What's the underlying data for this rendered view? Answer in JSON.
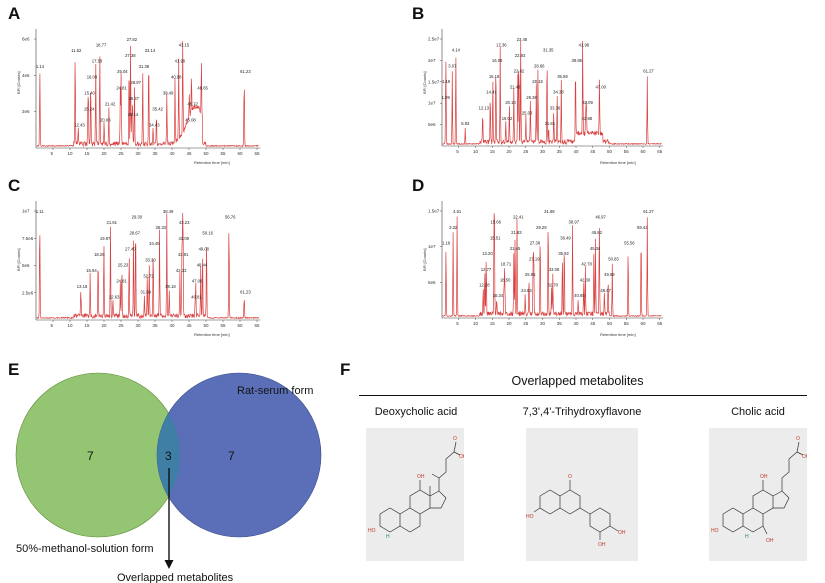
{
  "panels": {
    "A": {
      "letter": "A",
      "ylabel": "BPI [Counts]",
      "xlabel": "Retention time [min]",
      "yticks": [
        "2e6",
        "4e6",
        "6e6"
      ],
      "xticks": [
        "5",
        "10",
        "15",
        "20",
        "25",
        "30",
        "35",
        "40",
        "45",
        "50",
        "55",
        "60",
        "65"
      ],
      "peak_labels": [
        "1.14",
        "11.52",
        "12.43",
        "15.24",
        "15.40",
        "16.09",
        "17.58",
        "18.77",
        "20.03",
        "21.42",
        "24.81",
        "25.04",
        "27.38",
        "27.82",
        "28.14",
        "28.37",
        "28.97",
        "31.38",
        "33.14",
        "34.43",
        "35.42",
        "38.49",
        "40.88",
        "41.96",
        "43.15",
        "45.08",
        "45.72",
        "48.65",
        "61.23"
      ]
    },
    "B": {
      "letter": "B",
      "ylabel": "BPI [Counts]",
      "xlabel": "Retention time [min]",
      "yticks": [
        "5e6",
        "1e7",
        "1.5e7",
        "2e7",
        "2.5e7"
      ],
      "xticks": [
        "5",
        "10",
        "15",
        "20",
        "25",
        "30",
        "35",
        "40",
        "45",
        "50",
        "55",
        "60",
        "65"
      ],
      "peak_labels": [
        "1.09",
        "1.19",
        "3.07",
        "4.14",
        "6.93",
        "12.13",
        "14.41",
        "15.18",
        "16.09",
        "17.36",
        "19.02",
        "20.10",
        "21.45",
        "22.62",
        "22.93",
        "23.48",
        "25.03",
        "26.38",
        "28.15",
        "28.66",
        "31.35",
        "31.81",
        "33.36",
        "34.38",
        "35.59",
        "39.86",
        "41.98",
        "42.88",
        "43.09",
        "47.00",
        "61.27"
      ]
    },
    "C": {
      "letter": "C",
      "ylabel": "BPI [Counts]",
      "xlabel": "Retention time [min]",
      "yticks": [
        "2.5e6",
        "5e6",
        "7.5e6",
        "1e7"
      ],
      "xticks": [
        "5",
        "10",
        "15",
        "20",
        "25",
        "30",
        "35",
        "40",
        "45",
        "50",
        "55",
        "60",
        "65"
      ],
      "peak_labels": [
        "1.11",
        "13.18",
        "15.94",
        "18.26",
        "19.97",
        "21.91",
        "22.63",
        "24.81",
        "25.23",
        "27.40",
        "28.67",
        "29.30",
        "31.89",
        "32.72",
        "33.30",
        "34.45",
        "36.33",
        "38.49",
        "39.18",
        "42.33",
        "42.91",
        "43.09",
        "43.23",
        "46.81",
        "47.00",
        "48.44",
        "49.00",
        "50.16",
        "56.76",
        "61.23"
      ]
    },
    "D": {
      "letter": "D",
      "ylabel": "BPI [Counts]",
      "xlabel": "Retention time [min]",
      "yticks": [
        "5e6",
        "1e7",
        "1.5e7"
      ],
      "xticks": [
        "5",
        "10",
        "15",
        "20",
        "25",
        "30",
        "35",
        "40",
        "45",
        "50",
        "55",
        "60",
        "65"
      ],
      "peak_labels": [
        "1.19",
        "3.32",
        "4.51",
        "12.28",
        "12.77",
        "13.20",
        "15.51",
        "15.66",
        "16.34",
        "18.50",
        "18.71",
        "21.45",
        "21.83",
        "22.41",
        "24.83",
        "25.95",
        "27.19",
        "27.38",
        "29.29",
        "31.69",
        "32.70",
        "33.08",
        "35.92",
        "36.49",
        "38.97",
        "40.65",
        "42.30",
        "42.78",
        "45.34",
        "45.82",
        "46.97",
        "48.47",
        "49.59",
        "50.83",
        "55.56",
        "59.42",
        "61.27"
      ]
    },
    "E": {
      "letter": "E",
      "left_count": "7",
      "overlap_count": "3",
      "right_count": "7",
      "right_label": "Rat-serum form",
      "left_label": "50%-methanol-solution form",
      "arrow_label": "Overlapped metabolites"
    },
    "F": {
      "letter": "F",
      "header": "Overlapped metabolites",
      "metabolites": [
        "Deoxycholic acid",
        "7,3',4'-Trihydroxyflavone",
        "Cholic acid"
      ],
      "atom_labels": [
        "O",
        "OH",
        "H",
        "HO",
        "OH",
        "O",
        "OH",
        "HO",
        "OH",
        "O",
        "OH",
        "H",
        "HO",
        "OH",
        "OH"
      ]
    }
  },
  "colors": {
    "trace": "#d94040",
    "venn_left": "#93c572",
    "venn_right": "#5b6fb8",
    "venn_overlap": "#3f7fa6"
  }
}
